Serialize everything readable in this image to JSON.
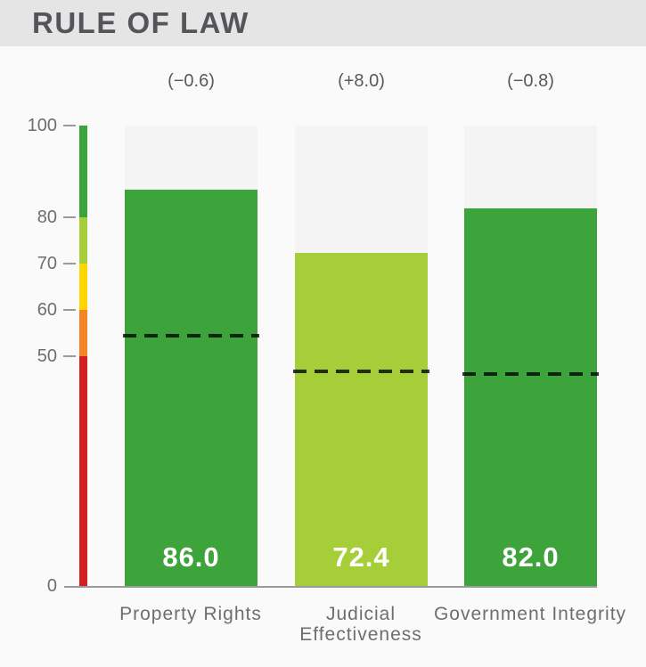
{
  "header": {
    "title": "RULE OF LAW",
    "background": "#e5e5e5",
    "text_color": "#545559"
  },
  "chart_data": {
    "type": "bar",
    "title": "RULE OF LAW",
    "categories": [
      "Property Rights",
      "Judicial Effectiveness",
      "Government Integrity"
    ],
    "values": [
      86.0,
      72.4,
      82.0
    ],
    "value_labels": [
      "86.0",
      "72.4",
      "82.0"
    ],
    "change_labels": [
      "(−0.6)",
      "(+8.0)",
      "(−0.8)"
    ],
    "bar_colors": [
      "#3da43b",
      "#a6ce39",
      "#3da43b"
    ],
    "dashed_reference_values": [
      54.4,
      46.6,
      46.0
    ],
    "ylim": [
      0,
      100
    ],
    "yticks": [
      100,
      80,
      70,
      60,
      50,
      0
    ],
    "grid": false,
    "legend": false,
    "track_color": "#f4f4f4",
    "axis_color": "#9b9b9b",
    "grade_scale": [
      {
        "from": 80,
        "to": 100,
        "color": "#3da43b"
      },
      {
        "from": 70,
        "to": 80,
        "color": "#a6ce39"
      },
      {
        "from": 60,
        "to": 70,
        "color": "#fdd600"
      },
      {
        "from": 50,
        "to": 60,
        "color": "#f58426"
      },
      {
        "from": 0,
        "to": 50,
        "color": "#d21e1e"
      }
    ]
  }
}
